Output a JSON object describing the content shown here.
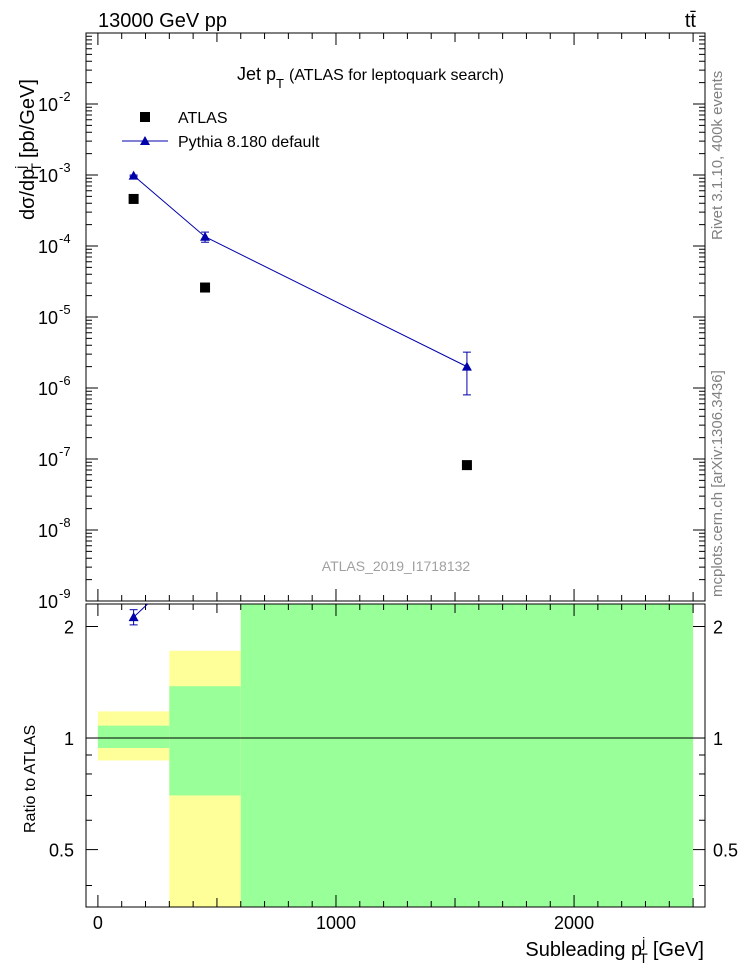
{
  "header": {
    "left": "13000 GeV pp",
    "right": "tt̄"
  },
  "side_labels": {
    "rivet": "Rivet 3.1.10,  400k events",
    "mcplots": "mcplots.cern.ch [arXiv:1306.3436]"
  },
  "chart_data": [
    {
      "type": "scatter",
      "title": "Jet p_T (ATLAS for leptoquark search)",
      "title_main": "Jet p",
      "title_sub": "T",
      "title_rest": "(ATLAS for leptoquark search)",
      "ylabel": "dσ/dp_T^j [pb/GeV]",
      "ylabel_main": "dσ/dp",
      "ylabel_sup": "j",
      "ylabel_sub": "T",
      "ylabel_rest": "[pb/GeV]",
      "yscale": "log",
      "ylim": [
        1e-09,
        0.1
      ],
      "xlim": [
        -50,
        2550
      ],
      "yticks": [
        {
          "value": 1e-09,
          "label": "10",
          "exp": "-9"
        },
        {
          "value": 1e-08,
          "label": "10",
          "exp": "-8"
        },
        {
          "value": 1e-07,
          "label": "10",
          "exp": "-7"
        },
        {
          "value": 1e-06,
          "label": "10",
          "exp": "-6"
        },
        {
          "value": 1e-05,
          "label": "10",
          "exp": "-5"
        },
        {
          "value": 0.0001,
          "label": "10",
          "exp": "-4"
        },
        {
          "value": 0.001,
          "label": "10",
          "exp": "-3"
        },
        {
          "value": 0.01,
          "label": "10",
          "exp": "-2"
        }
      ],
      "legend": [
        {
          "name": "ATLAS",
          "marker": "square",
          "color": "#000000"
        },
        {
          "name": "Pythia 8.180 default",
          "marker": "triangle",
          "color": "#0000aa"
        }
      ],
      "watermark": "ATLAS_2019_I1718132",
      "series": [
        {
          "name": "ATLAS",
          "x": [
            150,
            450,
            1550
          ],
          "y": [
            0.00046,
            2.6e-05,
            8.2e-08
          ]
        },
        {
          "name": "Pythia 8.180 default",
          "x": [
            150,
            450,
            1550
          ],
          "y": [
            0.00098,
            0.000135,
            2e-06
          ],
          "yerr_low": [
            2e-05,
            2.2e-05,
            1.2e-06
          ],
          "yerr_high": [
            2e-05,
            2.2e-05,
            1.2e-06
          ]
        }
      ]
    },
    {
      "type": "line",
      "ylabel": "Ratio to ATLAS",
      "xlabel": "Subleading p_T^j [GeV]",
      "xlabel_main": "Subleading p",
      "xlabel_sup": "j",
      "xlabel_sub": "T",
      "xlabel_rest": "[GeV]",
      "xlim": [
        -50,
        2550
      ],
      "ylim": [
        0.35,
        2.3
      ],
      "yscale": "log",
      "xticks": [
        0,
        1000,
        2000
      ],
      "yticks": [
        0.5,
        1,
        2
      ],
      "bands": [
        {
          "x": [
            0,
            300
          ],
          "yellow": [
            0.87,
            1.18
          ],
          "green": [
            0.94,
            1.08
          ]
        },
        {
          "x": [
            300,
            600
          ],
          "yellow": [
            0.35,
            1.72
          ],
          "green": [
            0.7,
            1.38
          ]
        },
        {
          "x": [
            600,
            2500
          ],
          "yellow": [
            0.35,
            2.3
          ],
          "green": [
            0.35,
            2.3
          ]
        }
      ],
      "series": [
        {
          "name": "Pythia 8.180 default",
          "x": [
            150
          ],
          "y": [
            2.12
          ],
          "yerr_low": [
            0.1
          ],
          "yerr_high": [
            0.1
          ]
        }
      ]
    }
  ]
}
